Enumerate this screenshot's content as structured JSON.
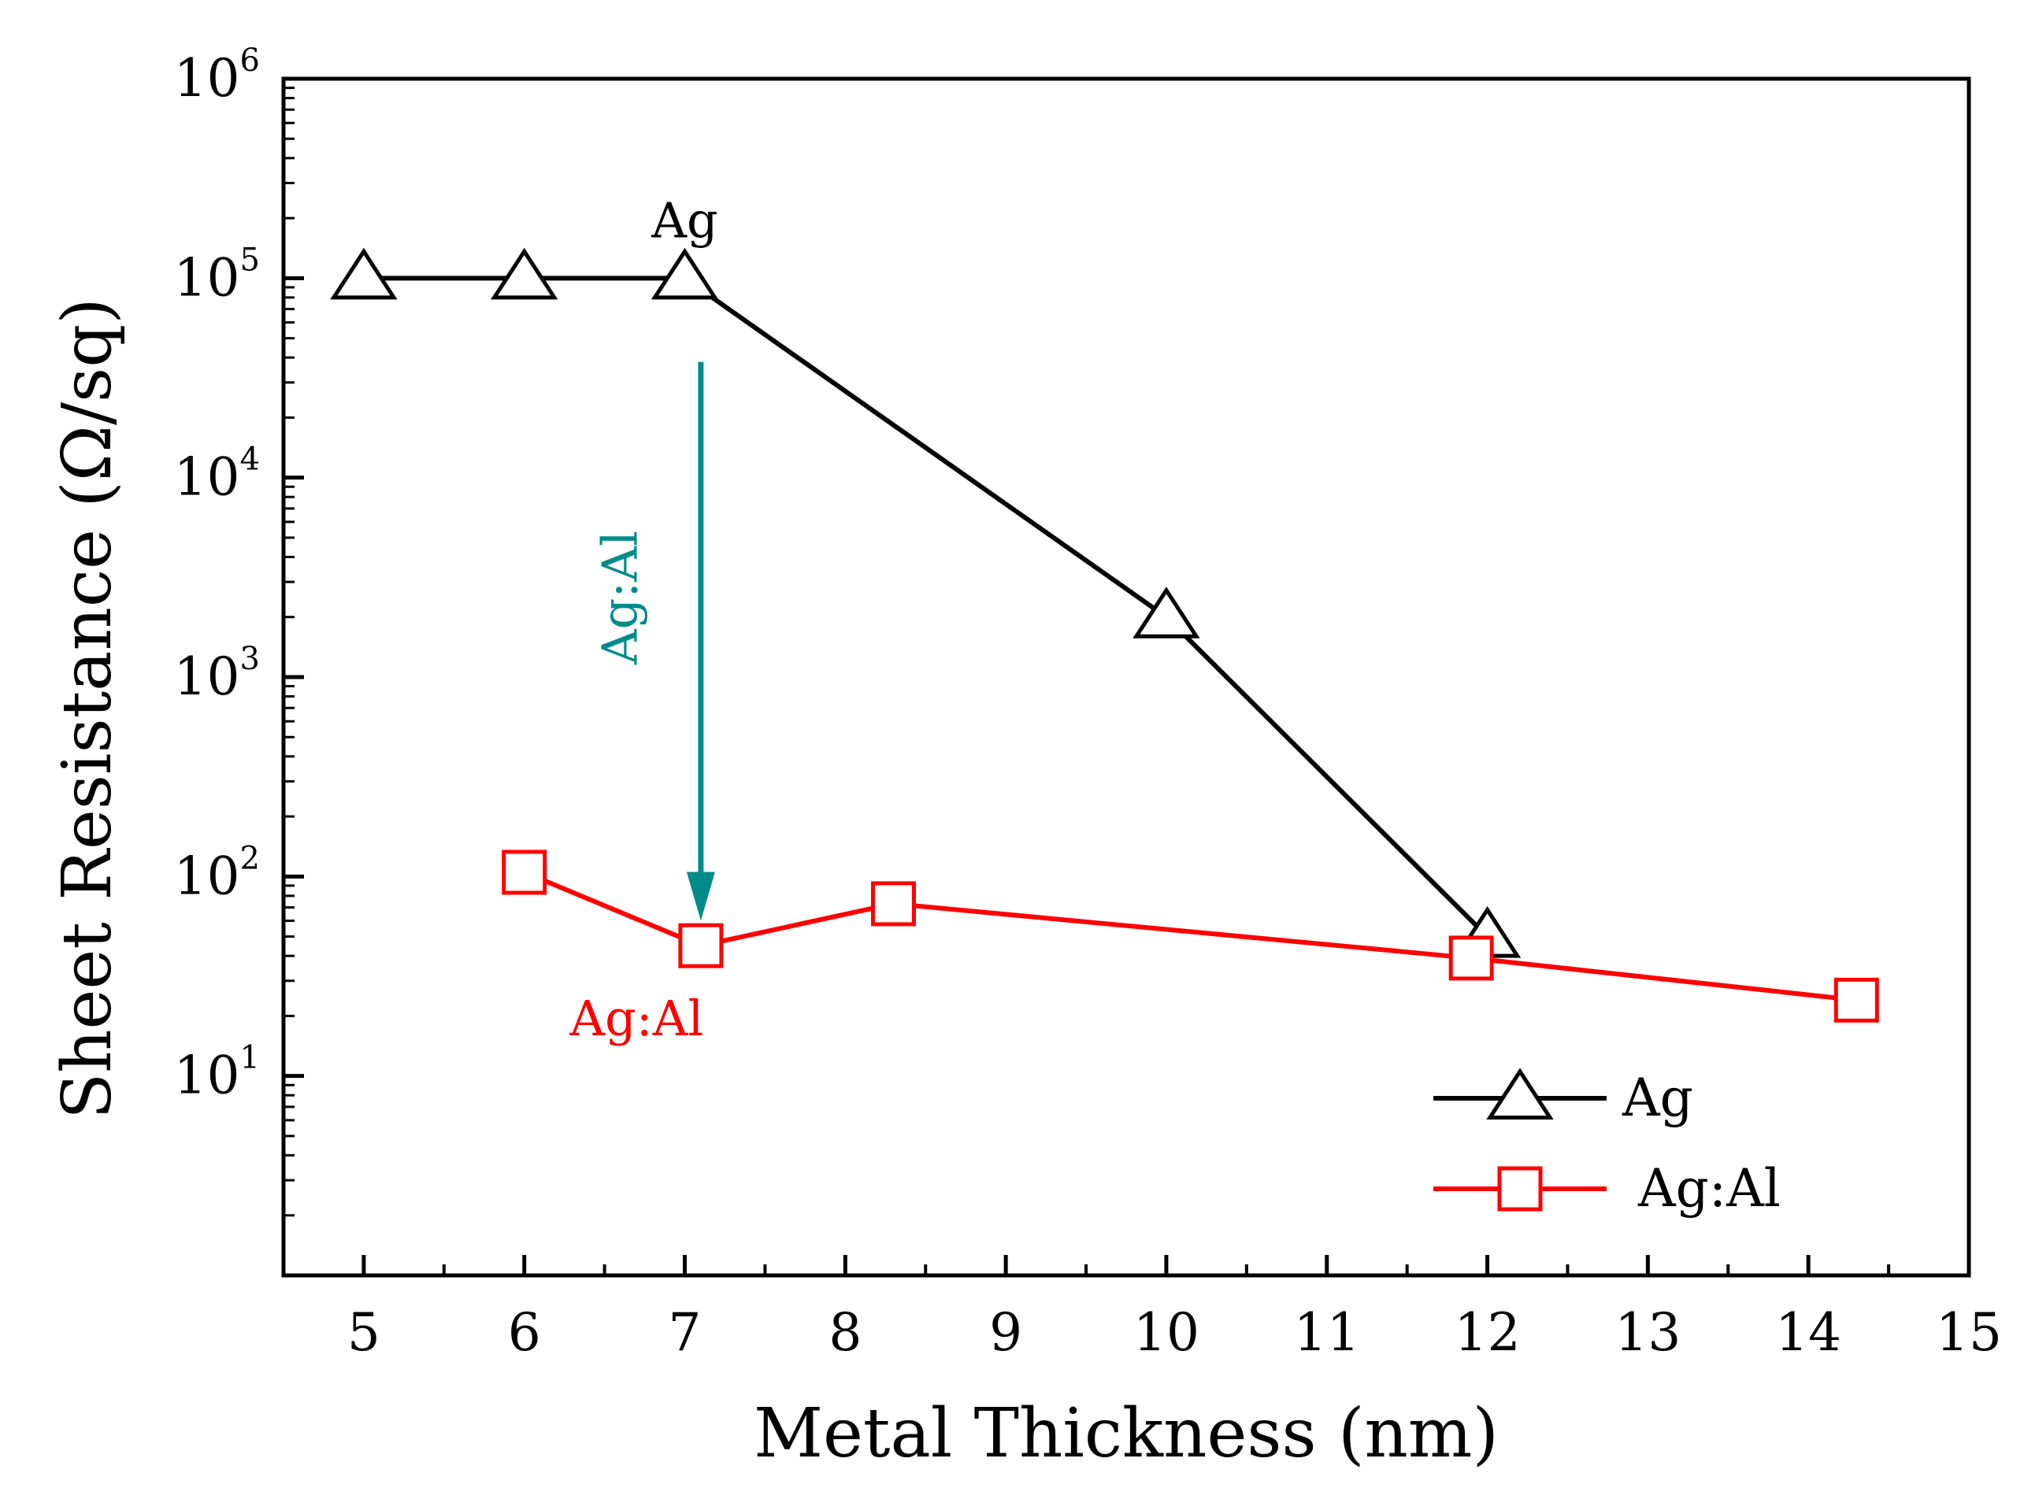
{
  "chart_data": {
    "type": "line",
    "title": "",
    "xlabel": "Metal Thickness (nm)",
    "ylabel": "Sheet Resistance (Ω/sq)",
    "xlim": [
      4.5,
      15
    ],
    "ylim_log10": [
      0,
      6
    ],
    "y_scale": "log",
    "x_ticks": [
      5,
      6,
      7,
      8,
      9,
      10,
      11,
      12,
      13,
      14,
      15
    ],
    "y_ticks": [
      {
        "base": "10",
        "exp": "1"
      },
      {
        "base": "10",
        "exp": "2"
      },
      {
        "base": "10",
        "exp": "3"
      },
      {
        "base": "10",
        "exp": "4"
      },
      {
        "base": "10",
        "exp": "5"
      },
      {
        "base": "10",
        "exp": "6"
      }
    ],
    "series": [
      {
        "name": "Ag",
        "color": "#000000",
        "marker": "triangle",
        "x": [
          5,
          6,
          7,
          10,
          12
        ],
        "y": [
          100000,
          100000,
          100000,
          2000,
          50
        ]
      },
      {
        "name": "Ag:Al",
        "color": "#ff0000",
        "marker": "square",
        "x": [
          6,
          7.1,
          8.3,
          11.9,
          14.3
        ],
        "y": [
          105,
          45,
          73,
          39,
          24
        ]
      }
    ],
    "legend": {
      "position": "bottom-right",
      "entries": [
        "Ag",
        "Ag:Al"
      ]
    },
    "annotations": [
      {
        "text": "Ag",
        "color": "#000000",
        "x": 7,
        "y": 160000
      },
      {
        "text": "Ag:Al",
        "color": "#ff0000",
        "x": 6.7,
        "y": 16
      },
      {
        "text": "Ag:Al",
        "color": "#008b8b",
        "rotated": true,
        "x": 6.7,
        "y": 2500
      }
    ],
    "arrow": {
      "color": "#008b8b",
      "x": 7.1,
      "y_from": 38000,
      "y_to": 60
    }
  }
}
